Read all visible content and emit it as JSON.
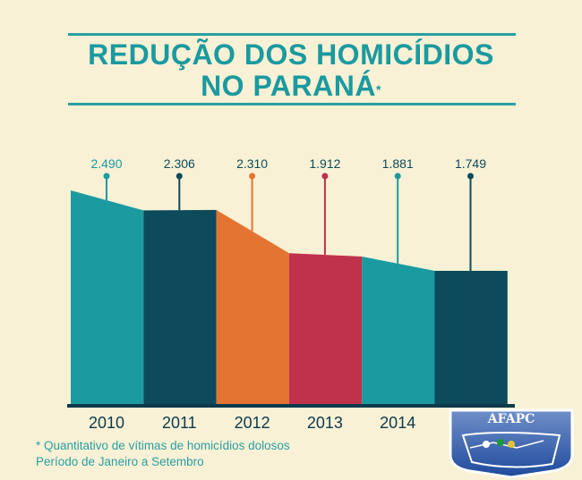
{
  "title": {
    "line1": "REDUÇÃO DOS HOMICÍDIOS",
    "line2": "NO PARANÁ",
    "asterisk": "*"
  },
  "chart_data": {
    "type": "area",
    "title": "REDUÇÃO DOS HOMICÍDIOS NO PARANÁ",
    "categories": [
      "2010",
      "2011",
      "2012",
      "2013",
      "2014",
      ""
    ],
    "values": [
      2490,
      2306,
      2310,
      1912,
      1881,
      1749
    ],
    "value_labels": [
      "2.490",
      "2.306",
      "2.310",
      "1.912",
      "1.881",
      "1.749"
    ],
    "colors": [
      "#1b9aa0",
      "#0d4a5c",
      "#e37431",
      "#c0314c",
      "#1b9aa0",
      "#0d4a5c"
    ],
    "label_colors": [
      "#1b9aa0",
      "#0d4a5c",
      "#0d4a5c",
      "#0d4a5c",
      "#0d4a5c",
      "#0d4a5c"
    ],
    "grid": false
  },
  "footnote": {
    "line1": "* Quantitativo de vítimas de homicídios dolosos",
    "line2": "Período de Janeiro a Setembro"
  },
  "logo": {
    "text": "AFAPC",
    "colors": [
      "#1f4a9c",
      "#ffffff"
    ]
  }
}
